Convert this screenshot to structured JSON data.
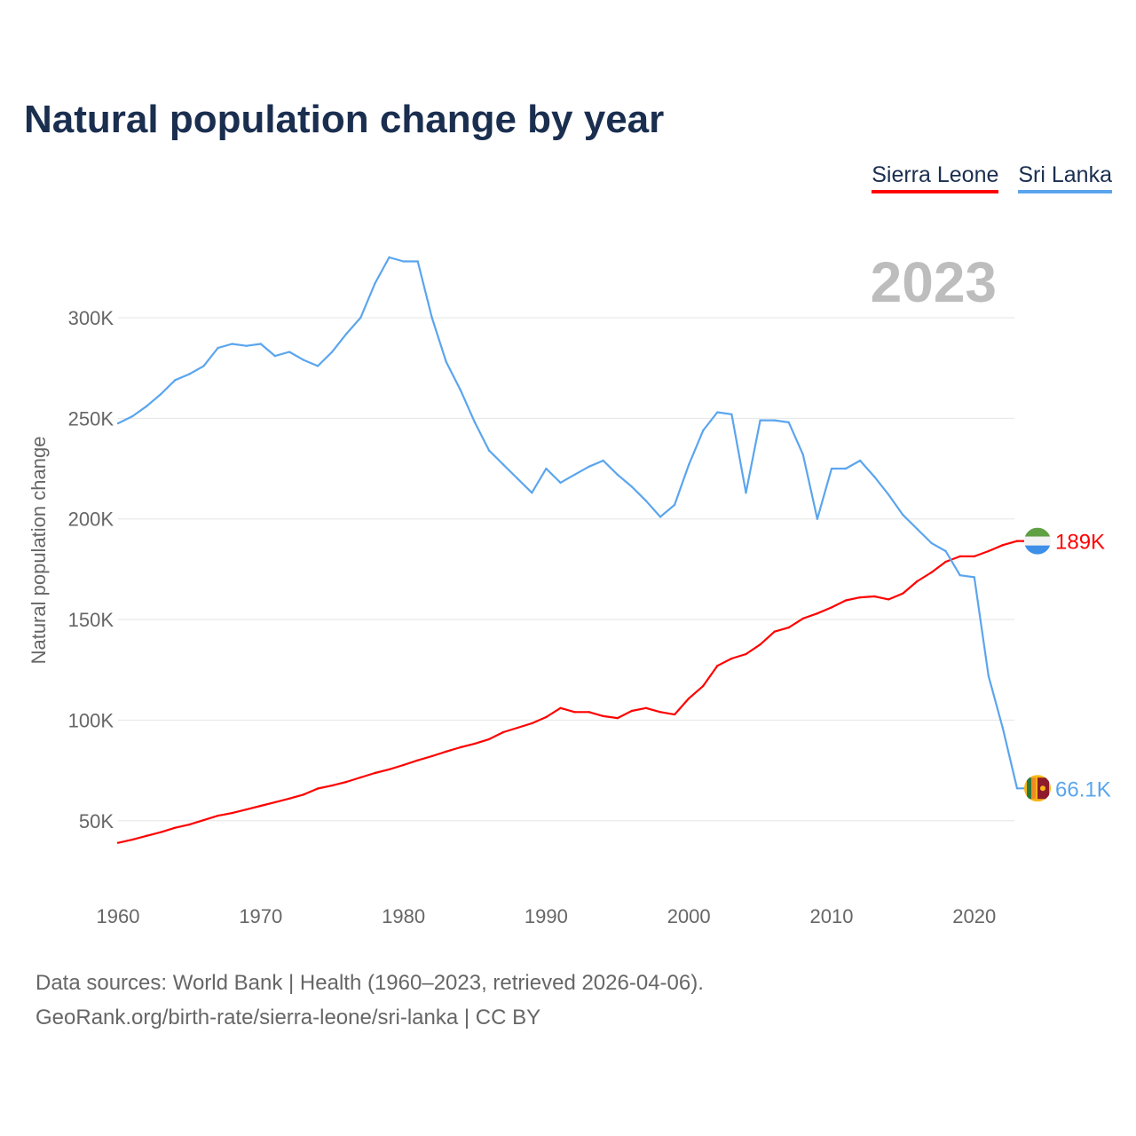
{
  "title": "Natural population change by year",
  "footer": {
    "line1": "Data sources: World Bank | Health (1960–2023, retrieved 2026-04-06).",
    "line2": "GeoRank.org/birth-rate/sierra-leone/sri-lanka | CC BY"
  },
  "chart_data": {
    "type": "line",
    "title": "Natural population change by year",
    "xlabel": "",
    "ylabel": "Natural population change",
    "year_label": "2023",
    "x": [
      1960,
      1961,
      1962,
      1963,
      1964,
      1965,
      1966,
      1967,
      1968,
      1969,
      1970,
      1971,
      1972,
      1973,
      1974,
      1975,
      1976,
      1977,
      1978,
      1979,
      1980,
      1981,
      1982,
      1983,
      1984,
      1985,
      1986,
      1987,
      1988,
      1989,
      1990,
      1991,
      1992,
      1993,
      1994,
      1995,
      1996,
      1997,
      1998,
      1999,
      2000,
      2001,
      2002,
      2003,
      2004,
      2005,
      2006,
      2007,
      2008,
      2009,
      2010,
      2011,
      2012,
      2013,
      2014,
      2015,
      2016,
      2017,
      2018,
      2019,
      2020,
      2021,
      2022,
      2023
    ],
    "xticks": [
      "1960",
      "1970",
      "1980",
      "1990",
      "2000",
      "2010",
      "2020"
    ],
    "yticks": [
      {
        "v": 50000,
        "label": "50K"
      },
      {
        "v": 100000,
        "label": "100K"
      },
      {
        "v": 150000,
        "label": "150K"
      },
      {
        "v": 200000,
        "label": "200K"
      },
      {
        "v": 250000,
        "label": "250K"
      },
      {
        "v": 300000,
        "label": "300K"
      }
    ],
    "ylim": [
      20000,
      335000
    ],
    "xlim": [
      1960,
      2023
    ],
    "grid": true,
    "legend_placement": "top-right",
    "series": [
      {
        "name": "Sierra Leone",
        "color": "#ff0000",
        "end_label": "189K",
        "flag": "sierra-leone-flag",
        "values": [
          39000,
          40600,
          42500,
          44300,
          46500,
          48100,
          50300,
          52500,
          53800,
          55600,
          57400,
          59200,
          61000,
          63000,
          66000,
          67500,
          69300,
          71500,
          73700,
          75500,
          77700,
          80000,
          82100,
          84400,
          86500,
          88300,
          90500,
          94000,
          96200,
          98400,
          101500,
          106000,
          104000,
          104000,
          102000,
          101000,
          104600,
          106000,
          104000,
          102800,
          110800,
          117000,
          127000,
          130600,
          132800,
          137600,
          144000,
          146000,
          150500,
          153000,
          156000,
          159500,
          161000,
          161500,
          160000,
          163000,
          169000,
          173400,
          178700,
          181400,
          181400,
          184000,
          187000,
          189000
        ]
      },
      {
        "name": "Sri Lanka",
        "color": "#5aa5ee",
        "end_label": "66.1K",
        "flag": "sri-lanka-flag",
        "values": [
          247500,
          251000,
          256000,
          262000,
          269000,
          272000,
          276000,
          285000,
          287000,
          286000,
          287000,
          281000,
          283000,
          279000,
          276000,
          283000,
          292000,
          300000,
          317000,
          330000,
          328000,
          328000,
          300000,
          278000,
          264000,
          248000,
          234000,
          227000,
          220000,
          213000,
          225000,
          218000,
          222000,
          226000,
          229000,
          222000,
          216000,
          209000,
          201000,
          207000,
          227000,
          244000,
          253000,
          252000,
          213000,
          249000,
          249000,
          248000,
          232000,
          200000,
          225000,
          225000,
          229000,
          221000,
          212000,
          202000,
          195000,
          188000,
          184000,
          172000,
          171000,
          122000,
          96000,
          66100
        ]
      }
    ]
  }
}
